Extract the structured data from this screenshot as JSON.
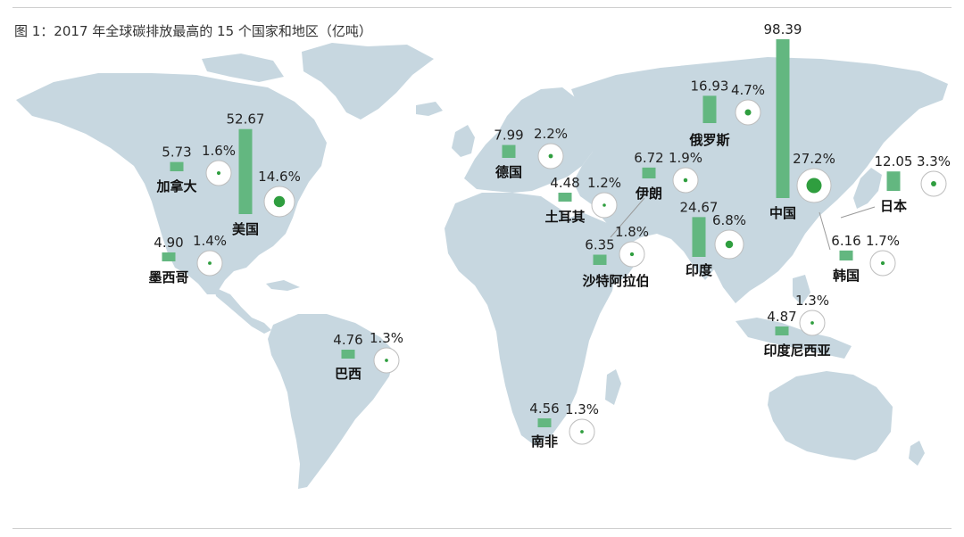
{
  "title": "图 1：2017 年全球碳排放最高的 15 个国家和地区（亿吨）",
  "colors": {
    "land": "#c7d7e0",
    "bar": "#63b780",
    "dot": "#2f9e3f",
    "circle_stroke": "#bdbdbd"
  },
  "chart_data": {
    "type": "map",
    "unit": "亿吨",
    "countries": [
      {
        "name": "中国",
        "value": "98.39",
        "share": "27.2%",
        "v": 98.39,
        "p": 27.2
      },
      {
        "name": "美国",
        "value": "52.67",
        "share": "14.6%",
        "v": 52.67,
        "p": 14.6
      },
      {
        "name": "印度",
        "value": "24.67",
        "share": "6.8%",
        "v": 24.67,
        "p": 6.8
      },
      {
        "name": "俄罗斯",
        "value": "16.93",
        "share": "4.7%",
        "v": 16.93,
        "p": 4.7
      },
      {
        "name": "日本",
        "value": "12.05",
        "share": "3.3%",
        "v": 12.05,
        "p": 3.3
      },
      {
        "name": "德国",
        "value": "7.99",
        "share": "2.2%",
        "v": 7.99,
        "p": 2.2
      },
      {
        "name": "伊朗",
        "value": "6.72",
        "share": "1.9%",
        "v": 6.72,
        "p": 1.9
      },
      {
        "name": "沙特阿拉伯",
        "value": "6.35",
        "share": "1.8%",
        "v": 6.35,
        "p": 1.8
      },
      {
        "name": "韩国",
        "value": "6.16",
        "share": "1.7%",
        "v": 6.16,
        "p": 1.7
      },
      {
        "name": "加拿大",
        "value": "5.73",
        "share": "1.6%",
        "v": 5.73,
        "p": 1.6
      },
      {
        "name": "墨西哥",
        "value": "4.90",
        "share": "1.4%",
        "v": 4.9,
        "p": 1.4
      },
      {
        "name": "印度尼西亚",
        "value": "4.87",
        "share": "1.3%",
        "v": 4.87,
        "p": 1.3
      },
      {
        "name": "巴西",
        "value": "4.76",
        "share": "1.3%",
        "v": 4.76,
        "p": 1.3
      },
      {
        "name": "南非",
        "value": "4.56",
        "share": "1.3%",
        "v": 4.56,
        "p": 1.3
      },
      {
        "name": "土耳其",
        "value": "4.48",
        "share": "1.2%",
        "v": 4.48,
        "p": 1.2
      }
    ]
  }
}
